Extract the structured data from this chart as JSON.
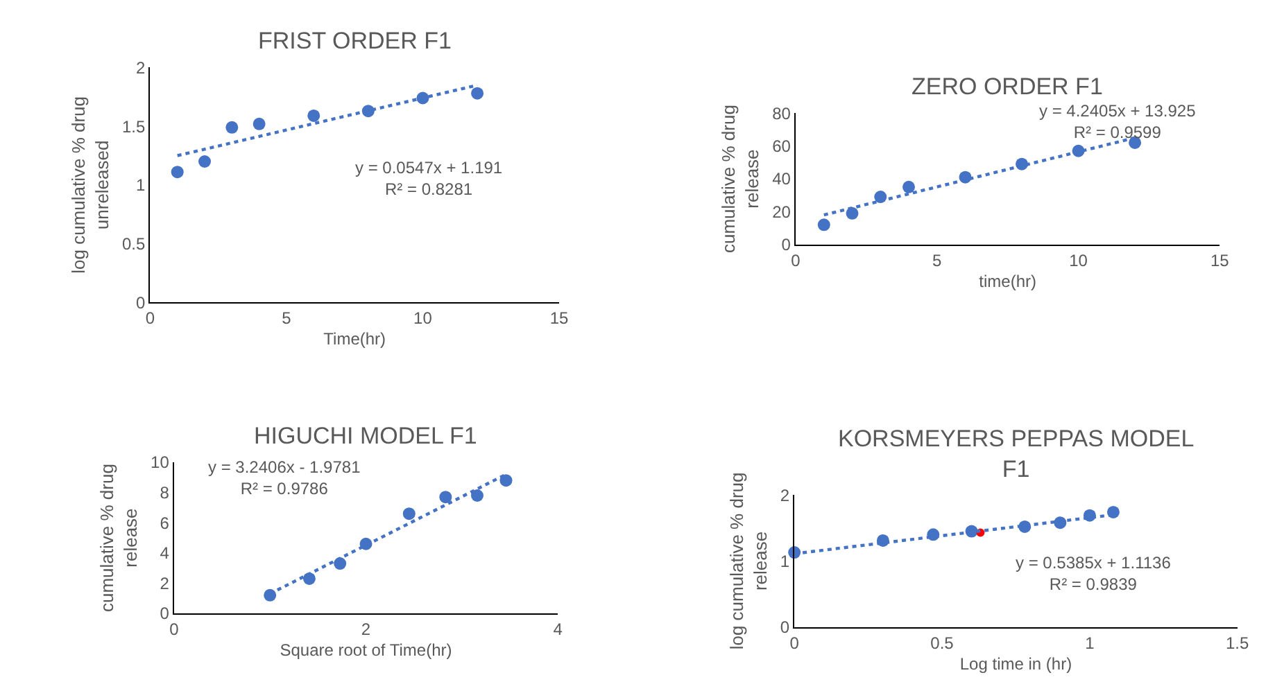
{
  "chart_data": [
    {
      "type": "scatter",
      "title": "FRIST ORDER F1",
      "xlabel": "Time(hr)",
      "ylabel": "log cumulative % drug\nunreleased",
      "xlim": [
        0,
        15
      ],
      "xticks": [
        0,
        5,
        10,
        15
      ],
      "ylim": [
        0,
        2
      ],
      "yticks": [
        0,
        0.5,
        1,
        1.5,
        2
      ],
      "marker": "circle",
      "annotations": [
        "y = 0.0547x + 1.191\nR² = 0.8281"
      ],
      "series": [
        {
          "color": "#4472c4",
          "x": [
            1,
            2,
            3,
            4,
            6,
            8,
            10,
            12
          ],
          "values": [
            1.11,
            1.2,
            1.49,
            1.52,
            1.59,
            1.63,
            1.74,
            1.78
          ]
        },
        {
          "type": "line",
          "marker": "none",
          "line_style": "dotted",
          "color": "#4472c4",
          "x": [
            1,
            12
          ],
          "values": [
            1.25,
            1.85
          ]
        }
      ]
    },
    {
      "type": "scatter",
      "title": "ZERO ORDER F1",
      "xlabel": "time(hr)",
      "ylabel": "cumulative % drug\nrelease",
      "xlim": [
        0,
        15
      ],
      "xticks": [
        0,
        5,
        10,
        15
      ],
      "ylim": [
        0,
        80
      ],
      "yticks": [
        0,
        20,
        40,
        60,
        80
      ],
      "marker": "circle",
      "annotations": [
        "y = 4.2405x + 13.925\nR² = 0.9599"
      ],
      "series": [
        {
          "color": "#4472c4",
          "x": [
            1,
            2,
            3,
            4,
            6,
            8,
            10,
            12
          ],
          "values": [
            12,
            19,
            29,
            35,
            41,
            49,
            57,
            62
          ]
        },
        {
          "type": "line",
          "marker": "none",
          "line_style": "dotted",
          "color": "#4472c4",
          "x": [
            1,
            12
          ],
          "values": [
            18,
            65
          ]
        }
      ]
    },
    {
      "type": "scatter",
      "title": "HIGUCHI MODEL F1",
      "xlabel": "Square root of Time(hr)",
      "ylabel": "cumulative % drug\nrelease",
      "xlim": [
        0,
        4
      ],
      "xticks": [
        0,
        2,
        4
      ],
      "ylim": [
        0,
        10
      ],
      "yticks": [
        0,
        2,
        4,
        6,
        8,
        10
      ],
      "marker": "circle",
      "annotations": [
        "y = 3.2406x - 1.9781\nR² = 0.9786"
      ],
      "series": [
        {
          "color": "#4472c4",
          "x": [
            1,
            1.41,
            1.73,
            2,
            2.45,
            2.83,
            3.16,
            3.46
          ],
          "values": [
            1.2,
            2.3,
            3.3,
            4.6,
            6.6,
            7.7,
            7.8,
            8.8
          ]
        },
        {
          "type": "line",
          "marker": "none",
          "line_style": "dotted",
          "color": "#4472c4",
          "x": [
            1,
            3.46
          ],
          "values": [
            1.3,
            9.2
          ]
        }
      ]
    },
    {
      "type": "scatter",
      "title": "KORSMEYERS PEPPAS MODEL\nF1",
      "xlabel": "Log time in (hr)",
      "ylabel": "log cumulative % drug\nrelease",
      "xlim": [
        0,
        1.5
      ],
      "xticks": [
        0,
        0.5,
        1,
        1.5
      ],
      "ylim": [
        0,
        2
      ],
      "yticks": [
        0,
        1,
        2
      ],
      "marker": "circle",
      "annotations": [
        "y = 0.5385x + 1.1136\nR² = 0.9839"
      ],
      "series": [
        {
          "color": "#4472c4",
          "x": [
            0,
            0.3,
            0.47,
            0.6,
            0.78,
            0.9,
            1.0,
            1.08
          ],
          "values": [
            1.13,
            1.31,
            1.4,
            1.45,
            1.52,
            1.58,
            1.69,
            1.74
          ]
        },
        {
          "color": "#ff0000",
          "x": [
            0.63
          ],
          "values": [
            1.43
          ]
        },
        {
          "type": "line",
          "marker": "none",
          "line_style": "dotted",
          "color": "#4472c4",
          "x": [
            0,
            1.08
          ],
          "values": [
            1.11,
            1.7
          ]
        }
      ]
    }
  ]
}
